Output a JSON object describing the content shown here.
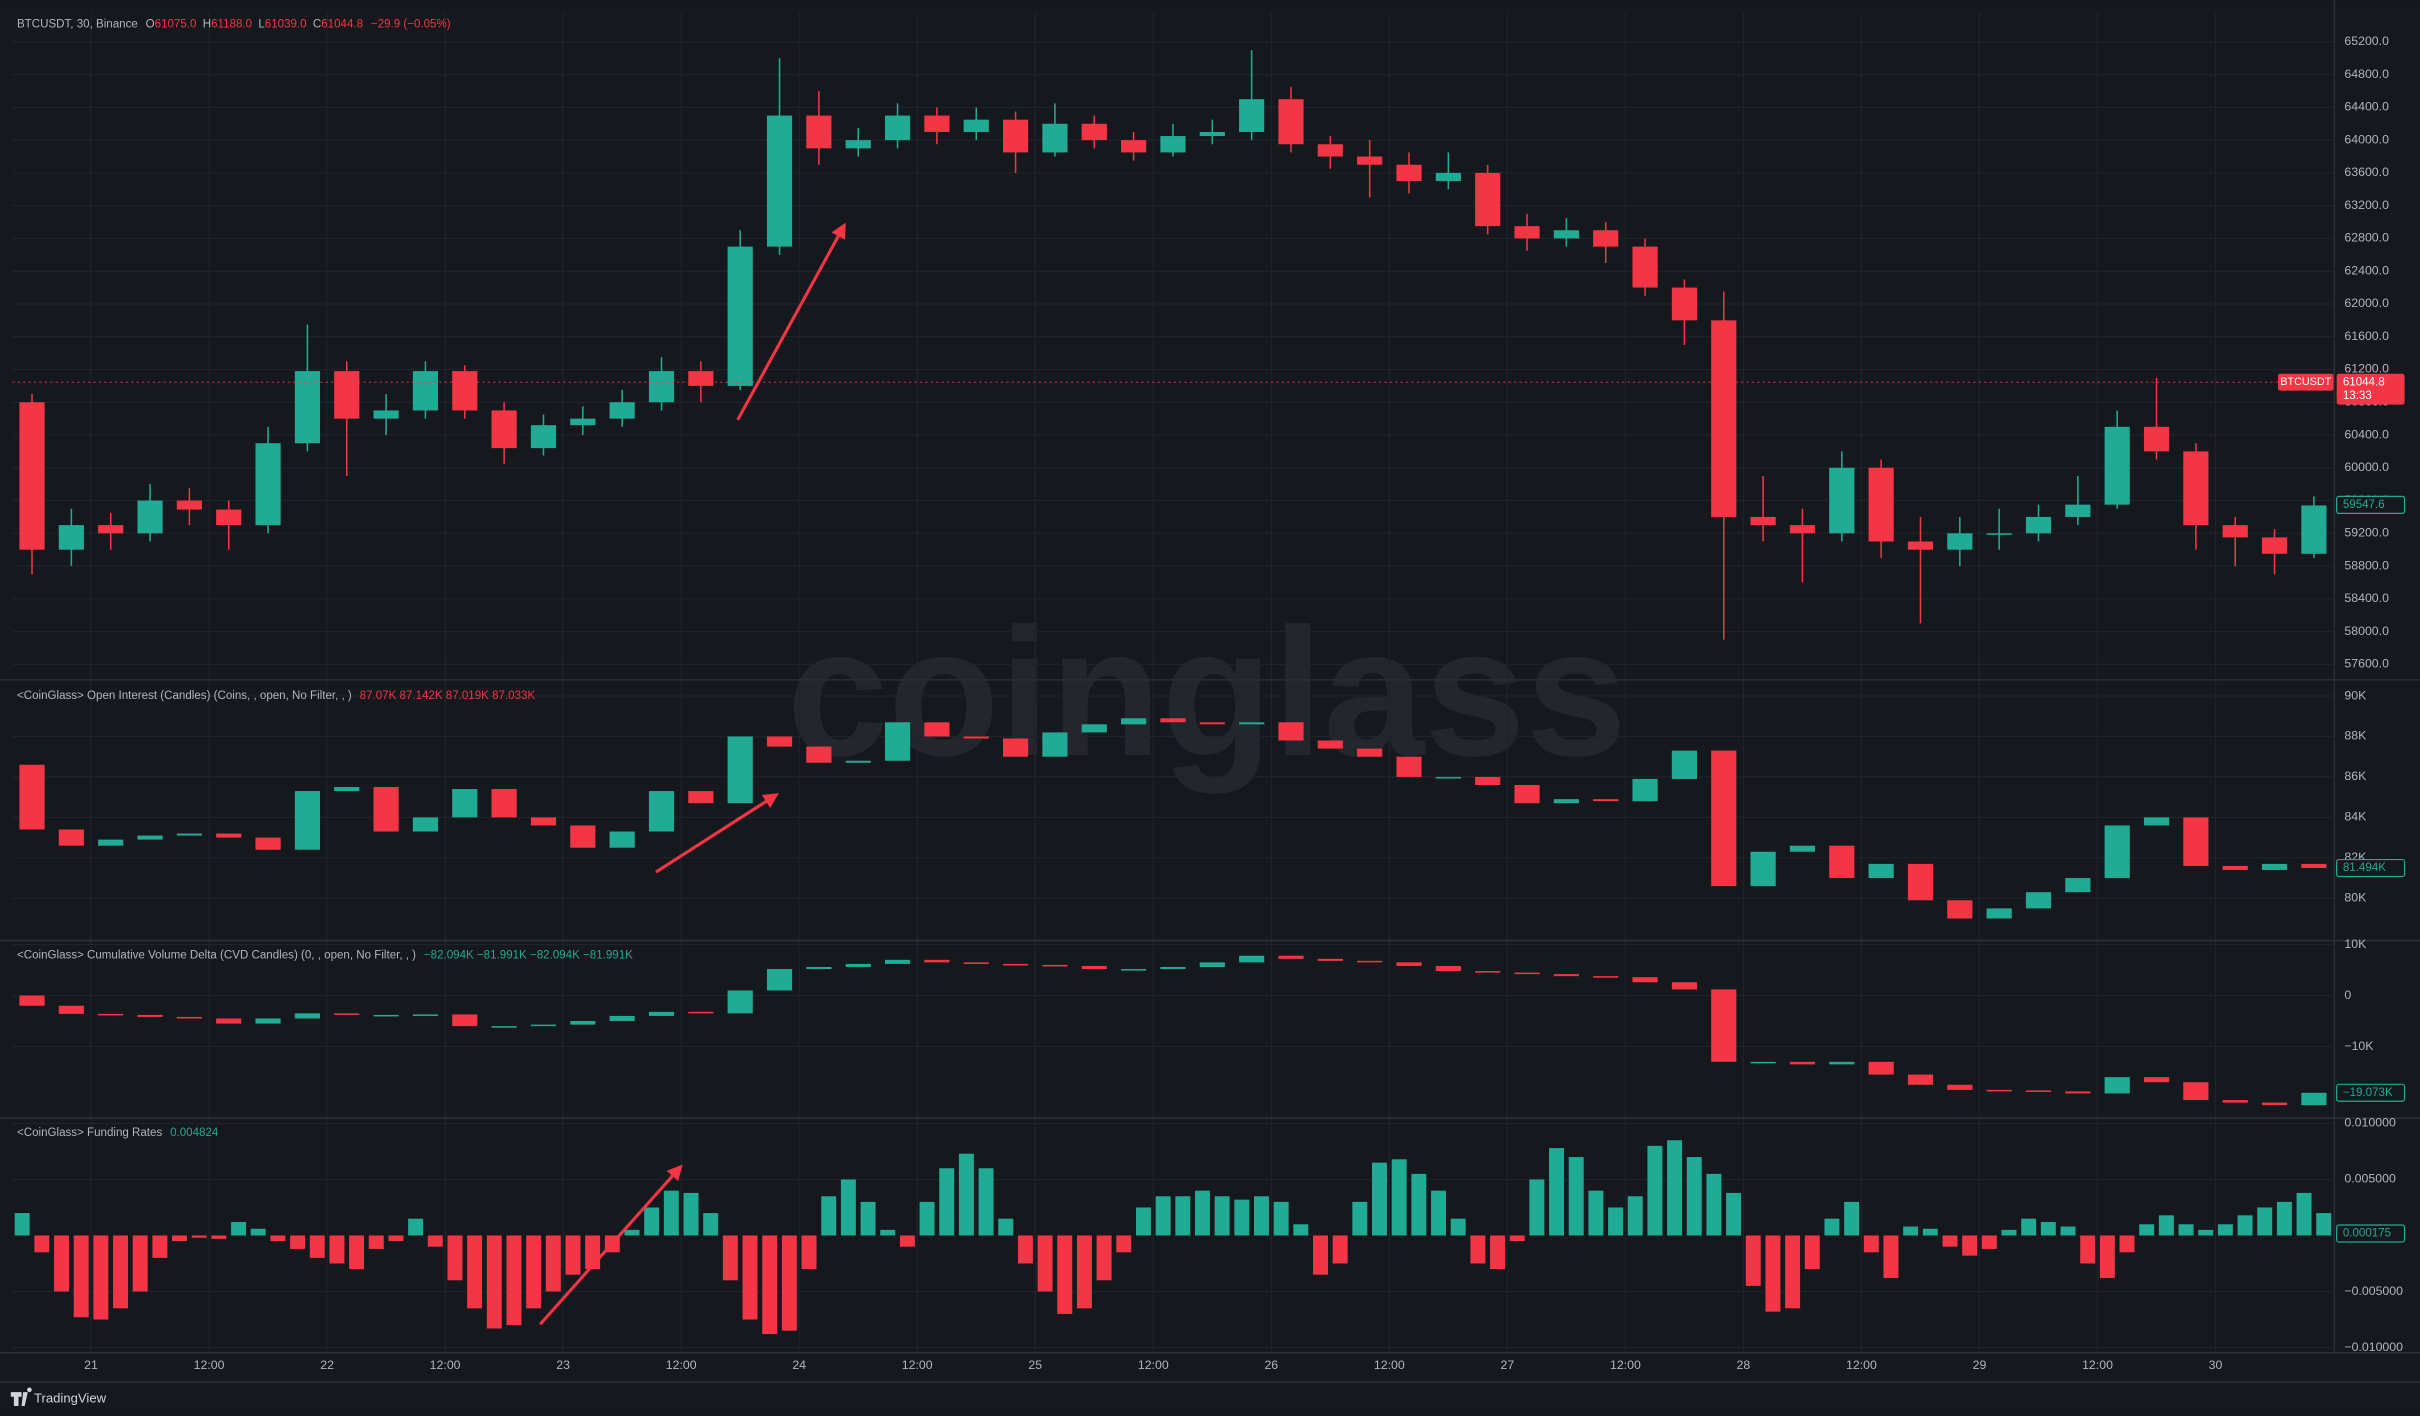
{
  "watermark": "coinglass",
  "footer": "TradingView",
  "chart_data": [
    {
      "type": "candlestick",
      "header": [
        "BTCUSDT, 30, Binance",
        "O",
        "61075.0",
        "H",
        "61188.0",
        "L",
        "61039.0",
        "C",
        "61044.8",
        "−29.9 (−0.05%)"
      ],
      "x": [
        -6,
        -2,
        2,
        6,
        10,
        14,
        18,
        22,
        26,
        30,
        34,
        38,
        42,
        46,
        50,
        54,
        58,
        62,
        66,
        70,
        74,
        78,
        82,
        86,
        90,
        94,
        98,
        102,
        106,
        110,
        114,
        118,
        122,
        126,
        130,
        134,
        138,
        142,
        146,
        150,
        154,
        158,
        162,
        166,
        170,
        174,
        178,
        182,
        186,
        190,
        194,
        198,
        202,
        206,
        210,
        214,
        218,
        222,
        226
      ],
      "open": [
        60800,
        59000,
        59300,
        59200,
        59600,
        59490,
        59300,
        60300,
        61180,
        60600,
        60700,
        61180,
        60700,
        60240,
        60520,
        60600,
        60800,
        61180,
        61000,
        62700,
        64300,
        63900,
        64000,
        64300,
        64100,
        64250,
        63850,
        64200,
        64000,
        63850,
        64050,
        64100,
        64500,
        63950,
        63800,
        63700,
        63500,
        63600,
        62950,
        62800,
        62900,
        62700,
        62200,
        61800,
        59400,
        59300,
        59200,
        60000,
        59100,
        59000,
        59200,
        59200,
        59400,
        59550,
        60500,
        60200,
        59300,
        59150,
        58950
      ],
      "high": [
        60900,
        59500,
        59450,
        59800,
        59750,
        59600,
        60500,
        61750,
        61300,
        60900,
        61300,
        61250,
        60800,
        60650,
        60750,
        60950,
        61350,
        61300,
        62900,
        65000,
        64600,
        64150,
        64450,
        64400,
        64400,
        64350,
        64450,
        64300,
        64100,
        64200,
        64250,
        65100,
        64650,
        64050,
        64000,
        63850,
        63850,
        63700,
        63100,
        63050,
        63000,
        62800,
        62300,
        62150,
        59900,
        59500,
        60200,
        60100,
        59400,
        59400,
        59500,
        59550,
        59900,
        60700,
        61100,
        60300,
        59400,
        59250,
        59650
      ],
      "low": [
        58700,
        58800,
        59000,
        59100,
        59300,
        59000,
        59200,
        60200,
        59900,
        60400,
        60600,
        60600,
        60050,
        60150,
        60400,
        60500,
        60700,
        60800,
        60950,
        62600,
        63700,
        63800,
        63900,
        63950,
        64000,
        63600,
        63800,
        63900,
        63750,
        63800,
        63950,
        64000,
        63850,
        63650,
        63300,
        63350,
        63400,
        62850,
        62650,
        62700,
        62500,
        62100,
        61500,
        57900,
        59100,
        58600,
        59100,
        58900,
        58100,
        58800,
        59000,
        59100,
        59300,
        59500,
        60100,
        59000,
        58800,
        58700,
        58900
      ],
      "close": [
        59000,
        59300,
        59200,
        59600,
        59490,
        59300,
        60300,
        61180,
        60600,
        60700,
        61180,
        60700,
        60240,
        60520,
        60600,
        60800,
        61180,
        61000,
        62700,
        64300,
        63900,
        64000,
        64300,
        64100,
        64250,
        63850,
        64200,
        64000,
        63850,
        64050,
        64100,
        64500,
        63950,
        63800,
        63700,
        63500,
        63600,
        62950,
        62800,
        62900,
        62700,
        62200,
        61800,
        59400,
        59300,
        59200,
        60000,
        59100,
        59000,
        59200,
        59200,
        59400,
        59550,
        60500,
        60200,
        59300,
        59150,
        58950,
        59540
      ],
      "ylim": [
        57420,
        65560
      ],
      "yticks": [
        {
          "value": 57600,
          "label": "57600.0"
        },
        {
          "value": 58000,
          "label": "58000.0"
        },
        {
          "value": 58400,
          "label": "58400.0"
        },
        {
          "value": 58800,
          "label": "58800.0"
        },
        {
          "value": 59200,
          "label": "59200.0"
        },
        {
          "value": 59600,
          "label": "59600.0"
        },
        {
          "value": 60000,
          "label": "60000.0"
        },
        {
          "value": 60400,
          "label": "60400.0"
        },
        {
          "value": 60800,
          "label": "60800.0"
        },
        {
          "value": 61200,
          "label": "61200.0"
        },
        {
          "value": 61600,
          "label": "61600.0"
        },
        {
          "value": 62000,
          "label": "62000.0"
        },
        {
          "value": 62400,
          "label": "62400.0"
        },
        {
          "value": 62800,
          "label": "62800.0"
        },
        {
          "value": 63200,
          "label": "63200.0"
        },
        {
          "value": 63600,
          "label": "63600.0"
        },
        {
          "value": 64000,
          "label": "64000.0"
        },
        {
          "value": 64400,
          "label": "64400.0"
        },
        {
          "value": 64800,
          "label": "64800.0"
        },
        {
          "value": 65200,
          "label": "65200.0"
        }
      ],
      "up_color": "#22ab94",
      "down_color": "#f23645",
      "grid": true,
      "marker_symbol": "BTCUSDT",
      "marker_price": 61044.8,
      "marker_countdown": "13:33",
      "last_value": 59547.6
    },
    {
      "type": "candlestick",
      "legend_title": "<CoinGlass> Open Interest (Candles) (Coins, , open, No Filter, , )",
      "legend_values": "87.07K  87.142K  87.019K  87.033K",
      "x": [
        -6,
        -2,
        2,
        6,
        10,
        14,
        18,
        22,
        26,
        30,
        34,
        38,
        42,
        46,
        50,
        54,
        58,
        62,
        66,
        70,
        74,
        78,
        82,
        86,
        90,
        94,
        98,
        102,
        106,
        110,
        114,
        118,
        122,
        126,
        130,
        134,
        138,
        142,
        146,
        150,
        154,
        158,
        162,
        166,
        170,
        174,
        178,
        182,
        186,
        190,
        194,
        198,
        202,
        206,
        210,
        214,
        218,
        222,
        226
      ],
      "open": [
        86600,
        83400,
        82600,
        82900,
        83100,
        83200,
        83000,
        82400,
        85300,
        85500,
        83300,
        84000,
        85400,
        84000,
        83600,
        82500,
        83300,
        85300,
        84700,
        88000,
        87500,
        86700,
        86800,
        88700,
        88000,
        87900,
        87000,
        88200,
        88600,
        88900,
        88700,
        88600,
        88700,
        87800,
        87400,
        87000,
        86000,
        86000,
        85600,
        84700,
        84900,
        84800,
        85900,
        87300,
        80600,
        82300,
        82600,
        81000,
        81700,
        79900,
        79000,
        79500,
        80300,
        81000,
        83600,
        84000,
        81600,
        81400,
        81700
      ],
      "close": [
        83400,
        82600,
        82900,
        83100,
        83200,
        83000,
        82400,
        85300,
        85500,
        83300,
        84000,
        85400,
        84000,
        83600,
        82500,
        83300,
        85300,
        84700,
        88000,
        87500,
        86700,
        86800,
        88700,
        88000,
        87900,
        87000,
        88200,
        88600,
        88900,
        88700,
        88600,
        88700,
        87800,
        87400,
        87000,
        86000,
        86000,
        85600,
        84700,
        84900,
        84800,
        85900,
        87300,
        80600,
        82300,
        82600,
        81000,
        81700,
        79900,
        79000,
        79500,
        80300,
        81000,
        83600,
        84000,
        81600,
        81400,
        81700,
        81494
      ],
      "ylim": [
        77940,
        90760
      ],
      "yticks": [
        {
          "value": 80000,
          "label": "80K"
        },
        {
          "value": 82000,
          "label": "82K"
        },
        {
          "value": 84000,
          "label": "84K"
        },
        {
          "value": 86000,
          "label": "86K"
        },
        {
          "value": 88000,
          "label": "88K"
        },
        {
          "value": 90000,
          "label": "90K"
        }
      ],
      "up_color": "#22ab94",
      "down_color": "#f23645",
      "grid": true,
      "last_value": {
        "value": 81494,
        "label": "81.494K"
      }
    },
    {
      "type": "candlestick",
      "legend_title": "<CoinGlass> Cumulative Volume Delta (CVD Candles) (0, , open, No Filter, , )",
      "legend_values": "−82.094K  −81.991K  −82.094K  −81.991K",
      "x": [
        -6,
        -2,
        2,
        6,
        10,
        14,
        18,
        22,
        26,
        30,
        34,
        38,
        42,
        46,
        50,
        54,
        58,
        62,
        66,
        70,
        74,
        78,
        82,
        86,
        90,
        94,
        98,
        102,
        106,
        110,
        114,
        118,
        122,
        126,
        130,
        134,
        138,
        142,
        146,
        150,
        154,
        158,
        162,
        166,
        170,
        174,
        178,
        182,
        186,
        190,
        194,
        198,
        202,
        206,
        210,
        214,
        218,
        222,
        226
      ],
      "open": [
        0,
        -2000,
        -3600,
        -3800,
        -4200,
        -4500,
        -5500,
        -4500,
        -3500,
        -3800,
        -3800,
        -3700,
        -6000,
        -6000,
        -5700,
        -5000,
        -4000,
        -3200,
        -3500,
        1000,
        5200,
        5600,
        6200,
        7000,
        6500,
        6200,
        6000,
        5800,
        5200,
        5200,
        5600,
        6500,
        7800,
        7200,
        6800,
        6500,
        5800,
        4800,
        4500,
        4200,
        3800,
        3600,
        2600,
        1200,
        -13000,
        -13000,
        -13500,
        -13000,
        -15500,
        -17500,
        -18500,
        -18600,
        -18800,
        -19200,
        -16000,
        -17000,
        -20500,
        -21000,
        -21500
      ],
      "close": [
        -2000,
        -3600,
        -3800,
        -4200,
        -4500,
        -5500,
        -4500,
        -3500,
        -3800,
        -3800,
        -3700,
        -6000,
        -6000,
        -5700,
        -5000,
        -4000,
        -3200,
        -3500,
        1000,
        5200,
        5600,
        6200,
        7000,
        6500,
        6200,
        6000,
        5800,
        5200,
        5200,
        5600,
        6500,
        7800,
        7200,
        6800,
        6500,
        5800,
        4800,
        4500,
        4200,
        3800,
        3600,
        2600,
        1200,
        -13000,
        -13000,
        -13500,
        -13000,
        -15500,
        -17500,
        -18500,
        -18600,
        -18800,
        -19200,
        -16000,
        -17000,
        -20500,
        -21000,
        -21500,
        -19073
      ],
      "ylim": [
        -23900,
        10600
      ],
      "yticks": [
        {
          "value": -10000,
          "label": "−10K"
        },
        0,
        {
          "value": 10000,
          "label": "10K"
        }
      ],
      "up_color": "#22ab94",
      "down_color": "#f23645",
      "grid": true,
      "last_value": {
        "value": -19073,
        "label": "−19.073K"
      }
    },
    {
      "type": "bar",
      "legend_title": "<CoinGlass> Funding Rates",
      "legend_values": "0.004824",
      "x": [
        -7,
        -5,
        -3,
        -1,
        1,
        3,
        5,
        7,
        9,
        11,
        13,
        15,
        17,
        19,
        21,
        23,
        25,
        27,
        29,
        31,
        33,
        35,
        37,
        39,
        41,
        43,
        45,
        47,
        49,
        51,
        53,
        55,
        57,
        59,
        61,
        63,
        65,
        67,
        69,
        71,
        73,
        75,
        77,
        79,
        81,
        83,
        85,
        87,
        89,
        91,
        93,
        95,
        97,
        99,
        101,
        103,
        105,
        107,
        109,
        111,
        113,
        115,
        117,
        119,
        121,
        123,
        125,
        127,
        129,
        131,
        133,
        135,
        137,
        139,
        141,
        143,
        145,
        147,
        149,
        151,
        153,
        155,
        157,
        159,
        161,
        163,
        165,
        167,
        169,
        171,
        173,
        175,
        177,
        179,
        181,
        183,
        185,
        187,
        189,
        191,
        193,
        195,
        197,
        199,
        201,
        203,
        205,
        207,
        209,
        211,
        213,
        215,
        217,
        219,
        221,
        223,
        225,
        227
      ],
      "values": [
        0.002,
        -0.0015,
        -0.005,
        -0.0073,
        -0.0075,
        -0.0065,
        -0.005,
        -0.002,
        -0.0005,
        -0.0002,
        -0.0003,
        0.0012,
        0.0006,
        -0.0005,
        -0.0012,
        -0.002,
        -0.0025,
        -0.003,
        -0.0012,
        -0.0005,
        0.0015,
        -0.001,
        -0.004,
        -0.0065,
        -0.0083,
        -0.008,
        -0.0065,
        -0.005,
        -0.0035,
        -0.003,
        -0.0015,
        0.0005,
        0.0025,
        0.004,
        0.0038,
        0.002,
        -0.004,
        -0.0075,
        -0.0088,
        -0.0085,
        -0.003,
        0.0035,
        0.005,
        0.003,
        0.0005,
        -0.001,
        0.003,
        0.006,
        0.0073,
        0.006,
        0.0015,
        -0.0025,
        -0.005,
        -0.007,
        -0.0065,
        -0.004,
        -0.0015,
        0.0025,
        0.0035,
        0.0035,
        0.004,
        0.0035,
        0.0032,
        0.0035,
        0.003,
        0.001,
        -0.0035,
        -0.0025,
        0.003,
        0.0065,
        0.0068,
        0.0055,
        0.004,
        0.0015,
        -0.0025,
        -0.003,
        -0.0005,
        0.005,
        0.0078,
        0.007,
        0.004,
        0.0025,
        0.0035,
        0.008,
        0.0085,
        0.007,
        0.0055,
        0.0038,
        -0.0045,
        -0.0068,
        -0.0065,
        -0.003,
        0.0015,
        0.003,
        -0.0015,
        -0.0038,
        0.0008,
        0.0006,
        -0.001,
        -0.0018,
        -0.0012,
        0.0005,
        0.0015,
        0.0012,
        0.0008,
        -0.0025,
        -0.0038,
        -0.0015,
        0.001,
        0.0018,
        0.001,
        0.0005,
        0.001,
        0.0018,
        0.0025,
        0.003,
        0.0038,
        0.002
      ],
      "ylim": [
        -0.0104,
        0.0104
      ],
      "yticks": [
        {
          "value": -0.01,
          "label": "−0.010000"
        },
        {
          "value": -0.005,
          "label": "−0.005000"
        },
        {
          "value": 0.005,
          "label": "0.005000"
        },
        {
          "value": 0.01,
          "label": "0.010000"
        }
      ],
      "xlim": [
        -8,
        228
      ],
      "xticks": [
        {
          "value": 0,
          "label": "21"
        },
        {
          "value": 12,
          "label": "12:00"
        },
        {
          "value": 24,
          "label": "22"
        },
        {
          "value": 36,
          "label": "12:00"
        },
        {
          "value": 48,
          "label": "23"
        },
        {
          "value": 60,
          "label": "12:00"
        },
        {
          "value": 72,
          "label": "24"
        },
        {
          "value": 84,
          "label": "12:00"
        },
        {
          "value": 96,
          "label": "25"
        },
        {
          "value": 108,
          "label": "12:00"
        },
        {
          "value": 120,
          "label": "26"
        },
        {
          "value": 132,
          "label": "12:00"
        },
        {
          "value": 144,
          "label": "27"
        },
        {
          "value": 156,
          "label": "12:00"
        },
        {
          "value": 168,
          "label": "28"
        },
        {
          "value": 180,
          "label": "12:00"
        },
        {
          "value": 192,
          "label": "29"
        },
        {
          "value": 204,
          "label": "12:00"
        },
        {
          "value": 216,
          "label": "30"
        }
      ],
      "up_color": "#22ab94",
      "down_color": "#f23645",
      "grid": true,
      "last_value": 0.000175
    }
  ]
}
